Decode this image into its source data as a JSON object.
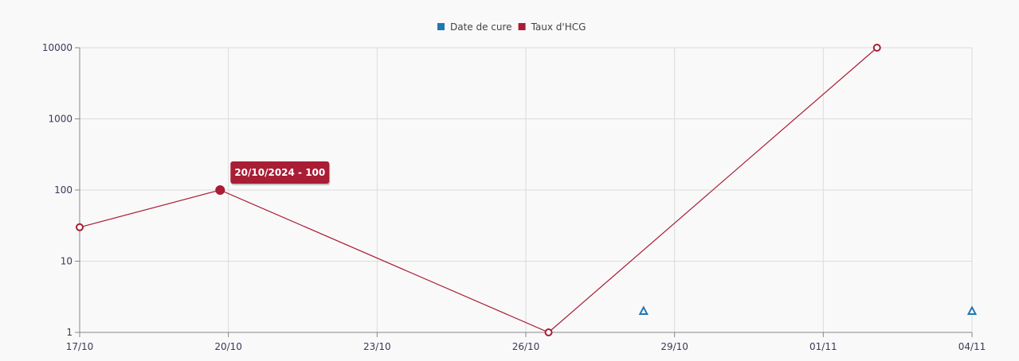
{
  "chart_data": {
    "type": "line",
    "title": "",
    "xlabel": "",
    "ylabel": "",
    "y_scale": "log",
    "ylim": [
      1,
      10000
    ],
    "xlim": [
      "2024-10-17T00:00",
      "2024-11-04T00:00"
    ],
    "x_tick_labels": [
      "17/10",
      "20/10",
      "23/10",
      "26/10",
      "29/10",
      "01/11",
      "04/11"
    ],
    "y_tick_labels": [
      "1",
      "10",
      "100",
      "1000",
      "10000"
    ],
    "grid": true,
    "legend_position": "top",
    "series": [
      {
        "name": "Date de cure",
        "color": "#1f77b4",
        "marker": "triangle",
        "line": false,
        "points": [
          {
            "x": "2024-10-28T09:00",
            "y": 2
          },
          {
            "x": "2024-11-04T00:00",
            "y": 2
          }
        ]
      },
      {
        "name": "Taux d'HCG",
        "color": "#a91d35",
        "marker": "circle",
        "line": true,
        "points": [
          {
            "x": "2024-10-17T00:00",
            "y": 30
          },
          {
            "x": "2024-10-19T20:00",
            "y": 100
          },
          {
            "x": "2024-10-26T11:00",
            "y": 1
          },
          {
            "x": "2024-11-02T02:00",
            "y": 10000
          }
        ]
      }
    ],
    "tooltip": {
      "text": "20/10/2024 - 100",
      "series_index": 1,
      "point_index": 1
    }
  }
}
